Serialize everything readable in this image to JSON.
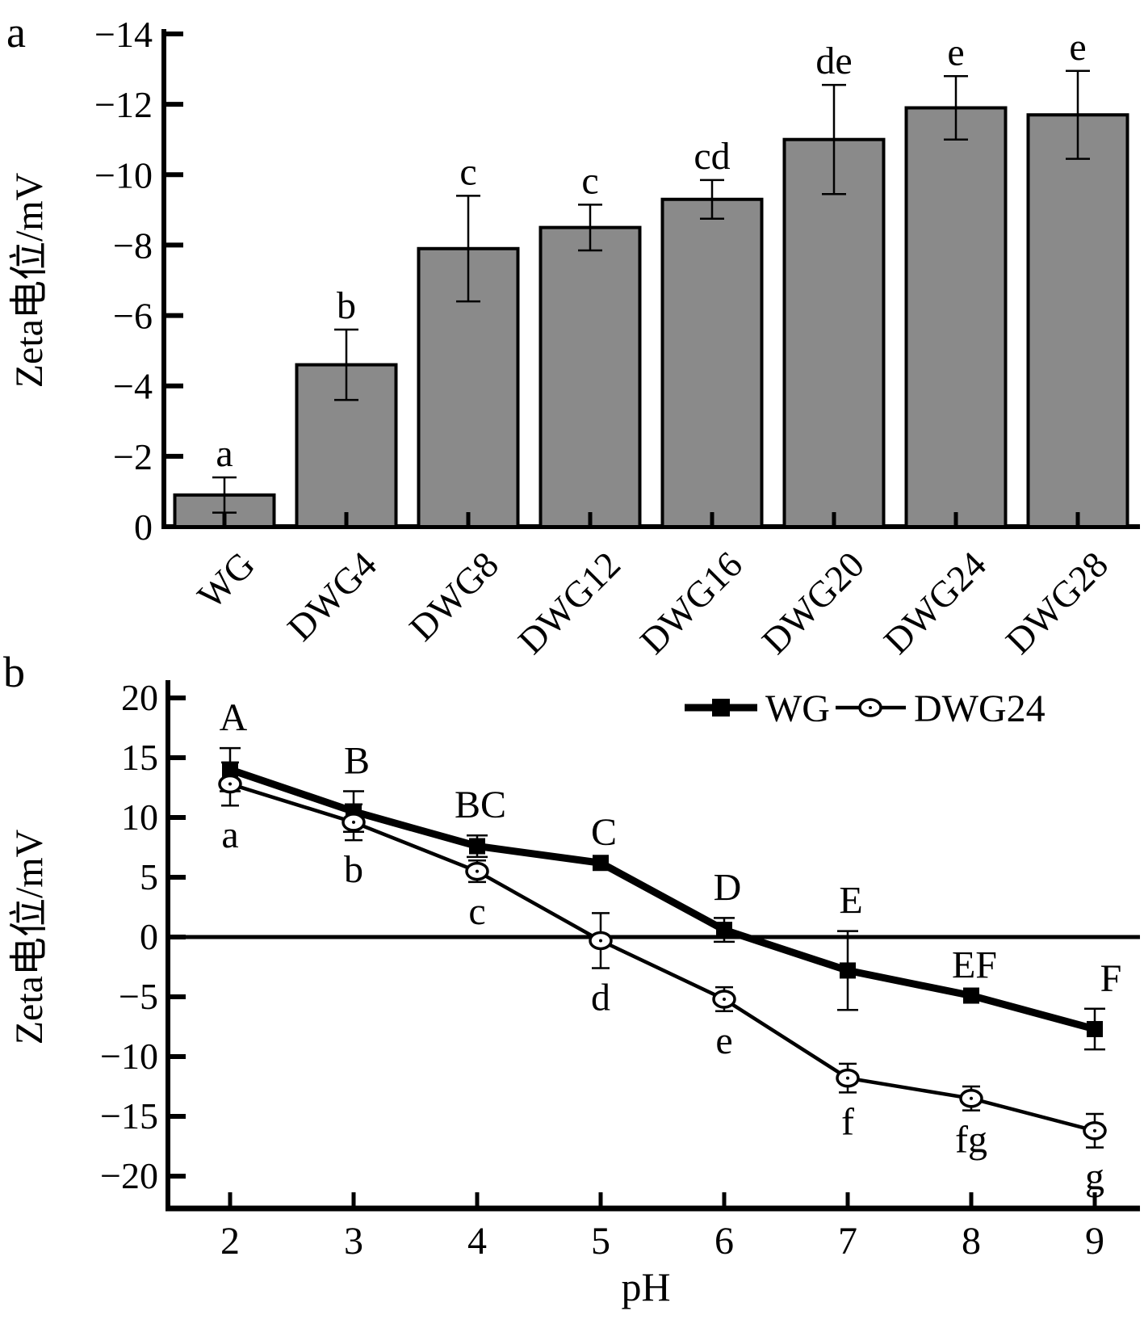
{
  "figure_title": "Zeta potential figure, two panels",
  "chart_data": [
    {
      "type": "bar",
      "panel_label": "a",
      "ylabel": "Zeta电位/mV",
      "xlabel": "",
      "ylim": [
        0,
        -14
      ],
      "yticks": [
        0,
        -2,
        -4,
        -6,
        -8,
        -10,
        -12,
        -14
      ],
      "grid": false,
      "bar_color": "#8a8a8a",
      "bar_edge_color": "#000000",
      "categories": [
        "WG",
        "DWG4",
        "DWG8",
        "DWG12",
        "DWG16",
        "DWG20",
        "DWG24",
        "DWG28"
      ],
      "values": [
        -0.9,
        -4.6,
        -7.9,
        -8.5,
        -9.3,
        -11.0,
        -11.9,
        -11.7
      ],
      "errors": [
        0.5,
        1.0,
        1.5,
        0.65,
        0.55,
        1.55,
        0.9,
        1.25
      ],
      "sig_letters": [
        "a",
        "b",
        "c",
        "c",
        "cd",
        "de",
        "e",
        "e"
      ]
    },
    {
      "type": "line",
      "panel_label": "b",
      "ylabel": "Zeta电位/mV",
      "xlabel": "pH",
      "x": [
        2,
        3,
        4,
        5,
        6,
        7,
        8,
        9
      ],
      "ylim": [
        -20,
        20
      ],
      "yticks": [
        20,
        15,
        10,
        5,
        0,
        -5,
        -10,
        -15,
        -20
      ],
      "grid": false,
      "zero_line": true,
      "legend_position": "top-right-inside",
      "line_color": "#000000",
      "series": [
        {
          "name": "WG",
          "marker": "filled-square",
          "line_weight": "thick",
          "values": [
            14.0,
            10.5,
            7.6,
            6.2,
            0.6,
            -2.8,
            -4.9,
            -7.7
          ],
          "errors": [
            1.8,
            1.7,
            0.9,
            0,
            1.0,
            3.3,
            0,
            1.7
          ],
          "letters": [
            "A",
            "B",
            "BC",
            "C",
            "D",
            "E",
            "EF",
            "F"
          ]
        },
        {
          "name": "DWG24",
          "marker": "open-circle",
          "line_weight": "thin",
          "values": [
            12.8,
            9.6,
            5.5,
            -0.3,
            -5.2,
            -11.8,
            -13.5,
            -16.2
          ],
          "errors": [
            1.8,
            1.5,
            0.9,
            2.3,
            1.0,
            1.2,
            1.0,
            1.4
          ],
          "letters": [
            "a",
            "b",
            "c",
            "d",
            "e",
            "f",
            "fg",
            "g"
          ]
        }
      ]
    }
  ]
}
